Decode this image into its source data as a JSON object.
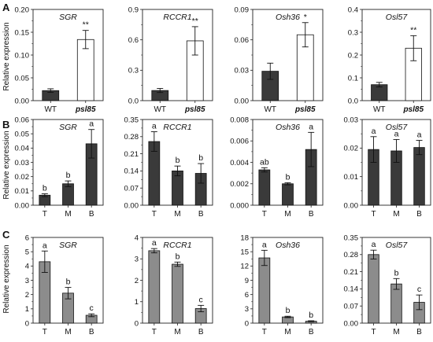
{
  "figure": {
    "ylabel": "Relative expression",
    "colors": {
      "dark": "#3a3a3a",
      "white": "#ffffff",
      "gray": "#8c8c8c",
      "axis": "#222222"
    }
  },
  "chart_data": [
    {
      "type": "bar",
      "row": "A",
      "panel_label": "A",
      "title": "SGR",
      "categories": [
        "WT",
        "psl85"
      ],
      "fills": [
        "dark",
        "white"
      ],
      "values": [
        0.022,
        0.134
      ],
      "errors": [
        0.004,
        0.02
      ],
      "annotations": [
        "",
        "**"
      ],
      "ylim": [
        0,
        0.2
      ],
      "yticks": [
        "0.00",
        "0.05",
        "0.10",
        "0.15",
        "0.20"
      ],
      "ylabel": "Relative expression",
      "italic_categories": [
        1
      ]
    },
    {
      "type": "bar",
      "row": "A",
      "title": "RCCR1",
      "categories": [
        "WT",
        "psl85"
      ],
      "fills": [
        "dark",
        "white"
      ],
      "values": [
        0.1,
        0.59
      ],
      "errors": [
        0.02,
        0.14
      ],
      "annotations": [
        "",
        "**"
      ],
      "ylim": [
        0,
        0.9
      ],
      "yticks": [
        "0.0",
        "0.3",
        "0.6",
        "0.9"
      ],
      "italic_categories": [
        1
      ]
    },
    {
      "type": "bar",
      "row": "A",
      "title": "Osh36",
      "categories": [
        "WT",
        "psl85"
      ],
      "fills": [
        "dark",
        "white"
      ],
      "values": [
        0.029,
        0.065
      ],
      "errors": [
        0.008,
        0.012
      ],
      "annotations": [
        "",
        "*"
      ],
      "ylim": [
        0,
        0.09
      ],
      "yticks": [
        "0.00",
        "0.03",
        "0.06",
        "0.09"
      ],
      "italic_categories": [
        1
      ]
    },
    {
      "type": "bar",
      "row": "A",
      "title": "Osl57",
      "categories": [
        "WT",
        "psl85"
      ],
      "fills": [
        "dark",
        "white"
      ],
      "values": [
        0.07,
        0.23
      ],
      "errors": [
        0.01,
        0.055
      ],
      "annotations": [
        "",
        "**"
      ],
      "ylim": [
        0,
        0.4
      ],
      "yticks": [
        "0.0",
        "0.1",
        "0.2",
        "0.3",
        "0.4"
      ],
      "italic_categories": [
        1
      ]
    },
    {
      "type": "bar",
      "row": "B",
      "panel_label": "B",
      "title": "SGR",
      "categories": [
        "T",
        "M",
        "B"
      ],
      "fills": [
        "dark",
        "dark",
        "dark"
      ],
      "values": [
        0.007,
        0.015,
        0.043
      ],
      "errors": [
        0.001,
        0.002,
        0.01
      ],
      "annotations": [
        "b",
        "b",
        "a"
      ],
      "ylim": [
        0,
        0.06
      ],
      "yticks": [
        "0.00",
        "0.01",
        "0.02",
        "0.03",
        "0.04",
        "0.05",
        "0.06"
      ],
      "ylabel": "Relative expression"
    },
    {
      "type": "bar",
      "row": "B",
      "title": "RCCR1",
      "categories": [
        "T",
        "M",
        "B"
      ],
      "fills": [
        "dark",
        "dark",
        "dark"
      ],
      "values": [
        0.26,
        0.14,
        0.13
      ],
      "errors": [
        0.04,
        0.02,
        0.04
      ],
      "annotations": [
        "a",
        "b",
        "b"
      ],
      "ylim": [
        0,
        0.35
      ],
      "yticks": [
        "0.00",
        "0.07",
        "0.14",
        "0.21",
        "0.28",
        "0.35"
      ]
    },
    {
      "type": "bar",
      "row": "B",
      "title": "Osh36",
      "categories": [
        "T",
        "M",
        "B"
      ],
      "fills": [
        "dark",
        "dark",
        "dark"
      ],
      "values": [
        0.0033,
        0.002,
        0.0052
      ],
      "errors": [
        0.0002,
        0.0001,
        0.0016
      ],
      "annotations": [
        "ab",
        "b",
        "a"
      ],
      "ylim": [
        0,
        0.008
      ],
      "yticks": [
        "0.000",
        "0.002",
        "0.004",
        "0.006",
        "0.008"
      ]
    },
    {
      "type": "bar",
      "row": "B",
      "title": "Osl57",
      "categories": [
        "T",
        "M",
        "B"
      ],
      "fills": [
        "dark",
        "dark",
        "dark"
      ],
      "values": [
        0.0195,
        0.019,
        0.0202
      ],
      "errors": [
        0.0045,
        0.004,
        0.0025
      ],
      "annotations": [
        "a",
        "a",
        "a"
      ],
      "ylim": [
        0,
        0.03
      ],
      "yticks": [
        "0.00",
        "0.01",
        "0.02",
        "0.03"
      ]
    },
    {
      "type": "bar",
      "row": "C",
      "panel_label": "C",
      "title": "SGR",
      "categories": [
        "T",
        "M",
        "B"
      ],
      "fills": [
        "gray",
        "gray",
        "gray"
      ],
      "values": [
        4.3,
        2.1,
        0.55
      ],
      "errors": [
        0.75,
        0.4,
        0.1
      ],
      "annotations": [
        "a",
        "b",
        "c"
      ],
      "ylim": [
        0,
        6
      ],
      "yticks": [
        "0",
        "1",
        "2",
        "3",
        "4",
        "5",
        "6"
      ],
      "ylabel": "Relative expression"
    },
    {
      "type": "bar",
      "row": "C",
      "title": "RCCR1",
      "categories": [
        "T",
        "M",
        "B"
      ],
      "fills": [
        "gray",
        "gray",
        "gray"
      ],
      "values": [
        3.38,
        2.75,
        0.68
      ],
      "errors": [
        0.1,
        0.1,
        0.15
      ],
      "annotations": [
        "a",
        "b",
        "c"
      ],
      "ylim": [
        0,
        4
      ],
      "yticks": [
        "0",
        "1",
        "2",
        "3",
        "4"
      ]
    },
    {
      "type": "bar",
      "row": "C",
      "title": "Osh36",
      "categories": [
        "T",
        "M",
        "B"
      ],
      "fills": [
        "gray",
        "gray",
        "gray"
      ],
      "values": [
        13.7,
        1.3,
        0.4
      ],
      "errors": [
        1.6,
        0.15,
        0.1
      ],
      "annotations": [
        "a",
        "b",
        "b"
      ],
      "ylim": [
        0,
        18
      ],
      "yticks": [
        "0",
        "3",
        "6",
        "9",
        "12",
        "15",
        "18"
      ]
    },
    {
      "type": "bar",
      "row": "C",
      "title": "Osl57",
      "categories": [
        "T",
        "M",
        "B"
      ],
      "fills": [
        "gray",
        "gray",
        "gray"
      ],
      "values": [
        0.28,
        0.16,
        0.085
      ],
      "errors": [
        0.018,
        0.022,
        0.03
      ],
      "annotations": [
        "a",
        "b",
        "c"
      ],
      "ylim": [
        0,
        0.35
      ],
      "yticks": [
        "0.00",
        "0.07",
        "0.14",
        "0.21",
        "0.28",
        "0.35"
      ]
    }
  ]
}
